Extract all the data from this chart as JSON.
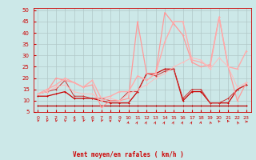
{
  "xlabel": "Vent moyen/en rafales ( km/h )",
  "bg_color": "#cce8e8",
  "grid_color": "#b0c8c8",
  "text_color": "#cc0000",
  "xlim": [
    -0.5,
    23.5
  ],
  "ylim": [
    5,
    51
  ],
  "yticks": [
    5,
    10,
    15,
    20,
    25,
    30,
    35,
    40,
    45,
    50
  ],
  "xticks": [
    0,
    1,
    2,
    3,
    4,
    5,
    6,
    7,
    8,
    9,
    10,
    11,
    12,
    13,
    14,
    15,
    16,
    17,
    18,
    19,
    20,
    21,
    22,
    23
  ],
  "series": [
    {
      "x": [
        0,
        1,
        2,
        3,
        4,
        5,
        6,
        7,
        8,
        9,
        10,
        11,
        12,
        13,
        14,
        15,
        16,
        17,
        18,
        19,
        20,
        21,
        22,
        23
      ],
      "y": [
        8,
        8,
        8,
        8,
        8,
        8,
        8,
        8,
        8,
        8,
        8,
        8,
        8,
        8,
        8,
        8,
        8,
        8,
        8,
        8,
        8,
        8,
        8,
        8
      ],
      "color": "#bb0000",
      "lw": 0.9,
      "marker": "+"
    },
    {
      "x": [
        0,
        1,
        2,
        3,
        4,
        5,
        6,
        7,
        8,
        9,
        10,
        11,
        12,
        13,
        14,
        15,
        16,
        17,
        18,
        19,
        20,
        21,
        22,
        23
      ],
      "y": [
        12,
        12,
        13,
        14,
        11,
        11,
        11,
        10,
        9,
        9,
        9,
        14,
        22,
        22,
        24,
        24,
        10,
        14,
        14,
        9,
        9,
        9,
        15,
        17
      ],
      "color": "#cc0000",
      "lw": 0.9,
      "marker": "+"
    },
    {
      "x": [
        0,
        1,
        2,
        3,
        4,
        5,
        6,
        7,
        8,
        9,
        10,
        11,
        12,
        13,
        14,
        15,
        16,
        17,
        18,
        19,
        20,
        21,
        22,
        23
      ],
      "y": [
        13,
        14,
        15,
        19,
        12,
        12,
        11,
        11,
        10,
        10,
        14,
        14,
        22,
        21,
        23,
        24,
        11,
        15,
        15,
        9,
        9,
        11,
        15,
        17
      ],
      "color": "#cc3333",
      "lw": 0.7,
      "marker": "+"
    },
    {
      "x": [
        0,
        1,
        2,
        3,
        4,
        5,
        6,
        7,
        8,
        9,
        10,
        11,
        12,
        13,
        14,
        15,
        16,
        17,
        18,
        19,
        20,
        21,
        22,
        23
      ],
      "y": [
        13,
        14,
        20,
        19,
        18,
        16,
        17,
        7,
        10,
        10,
        11,
        45,
        22,
        22,
        49,
        44,
        39,
        27,
        25,
        26,
        47,
        25,
        10,
        18
      ],
      "color": "#ff9999",
      "lw": 0.9,
      "marker": "+"
    },
    {
      "x": [
        0,
        1,
        2,
        3,
        4,
        5,
        6,
        7,
        8,
        9,
        10,
        11,
        12,
        13,
        14,
        15,
        16,
        17,
        18,
        19,
        20,
        21,
        22,
        23
      ],
      "y": [
        13,
        15,
        17,
        20,
        18,
        16,
        19,
        11,
        12,
        14,
        14,
        21,
        19,
        22,
        36,
        45,
        45,
        28,
        27,
        25,
        47,
        25,
        24,
        32
      ],
      "color": "#ffaaaa",
      "lw": 1.0,
      "marker": "+"
    },
    {
      "x": [
        0,
        1,
        2,
        3,
        4,
        5,
        6,
        7,
        8,
        9,
        10,
        11,
        12,
        13,
        14,
        15,
        16,
        17,
        18,
        19,
        20,
        21,
        22,
        23
      ],
      "y": [
        13,
        14,
        16,
        17,
        14,
        13,
        13,
        10,
        11,
        10,
        13,
        15,
        17,
        20,
        22,
        25,
        27,
        29,
        28,
        24,
        29,
        25,
        16,
        18
      ],
      "color": "#ffbbbb",
      "lw": 0.7,
      "marker": "+"
    }
  ],
  "arrow_angles": [
    210,
    210,
    210,
    200,
    220,
    225,
    215,
    225,
    180,
    180,
    30,
    45,
    45,
    45,
    45,
    45,
    45,
    45,
    30,
    320,
    300,
    310,
    315,
    90
  ]
}
